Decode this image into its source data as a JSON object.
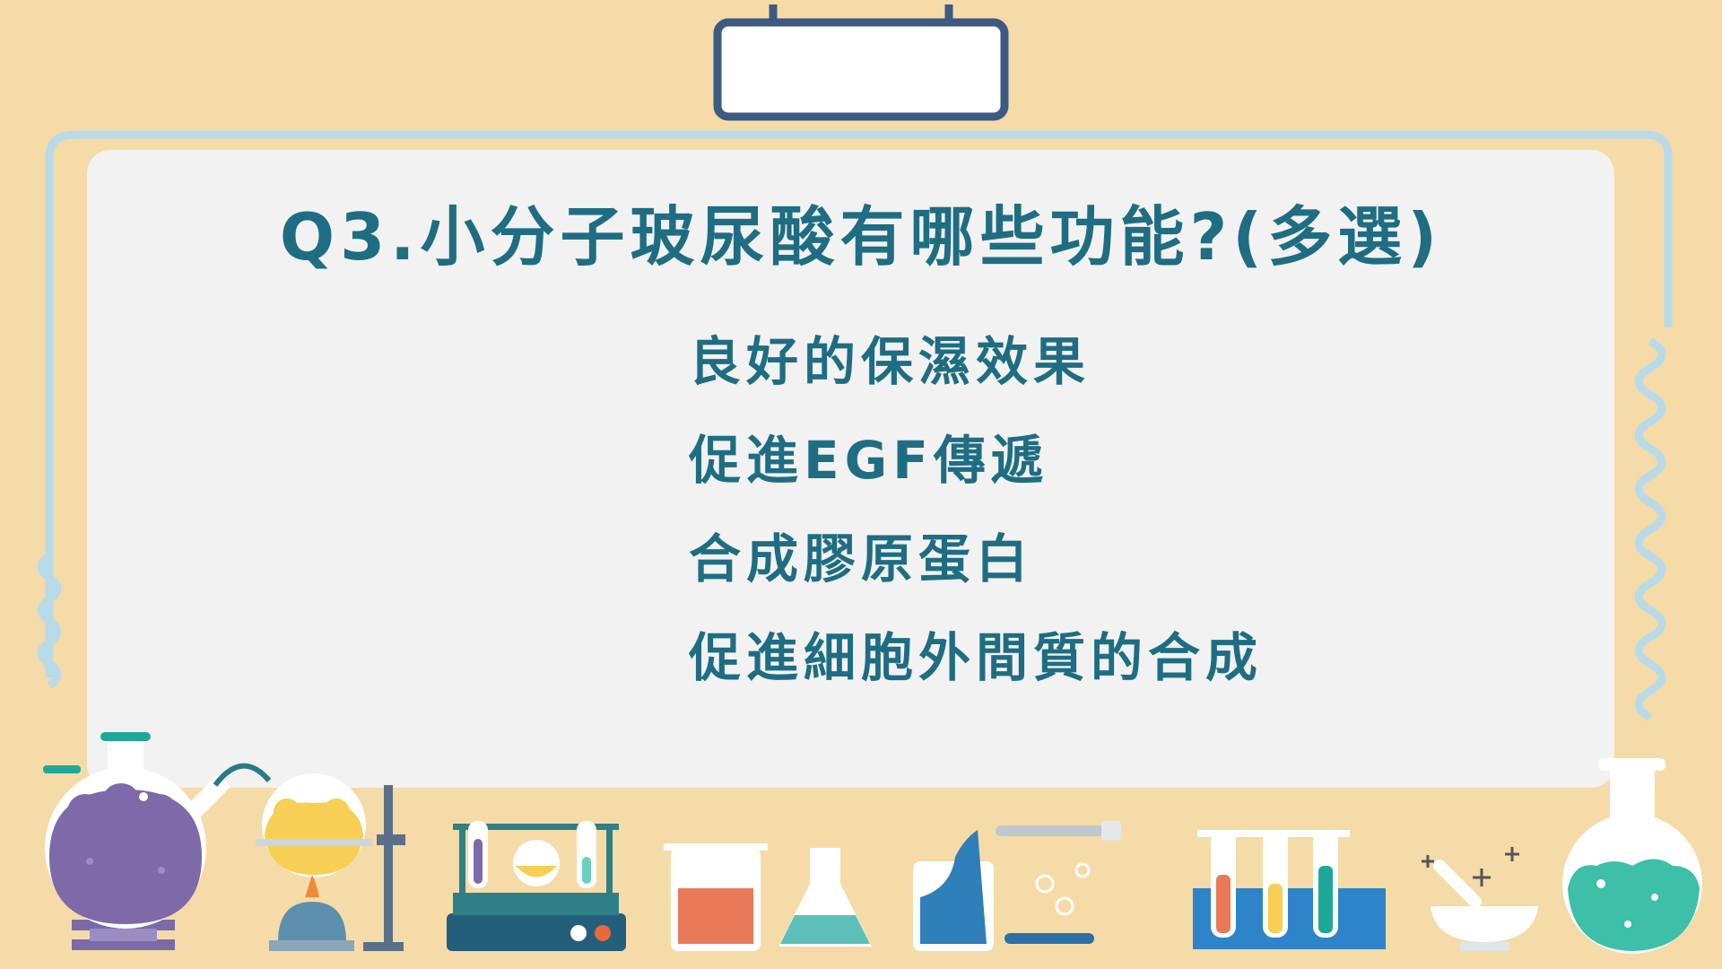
{
  "question": {
    "title": "Q3.小分子玻尿酸有哪些功能?(多選)",
    "options": [
      "良好的保濕效果",
      "促進EGF傳遞",
      "合成膠原蛋白",
      "促進細胞外間質的合成"
    ]
  },
  "colors": {
    "background": "#f5dba8",
    "board": "#f2f2f2",
    "wire": "#b9dbe9",
    "text": "#1f6d82",
    "frame": "#3c5a82"
  }
}
